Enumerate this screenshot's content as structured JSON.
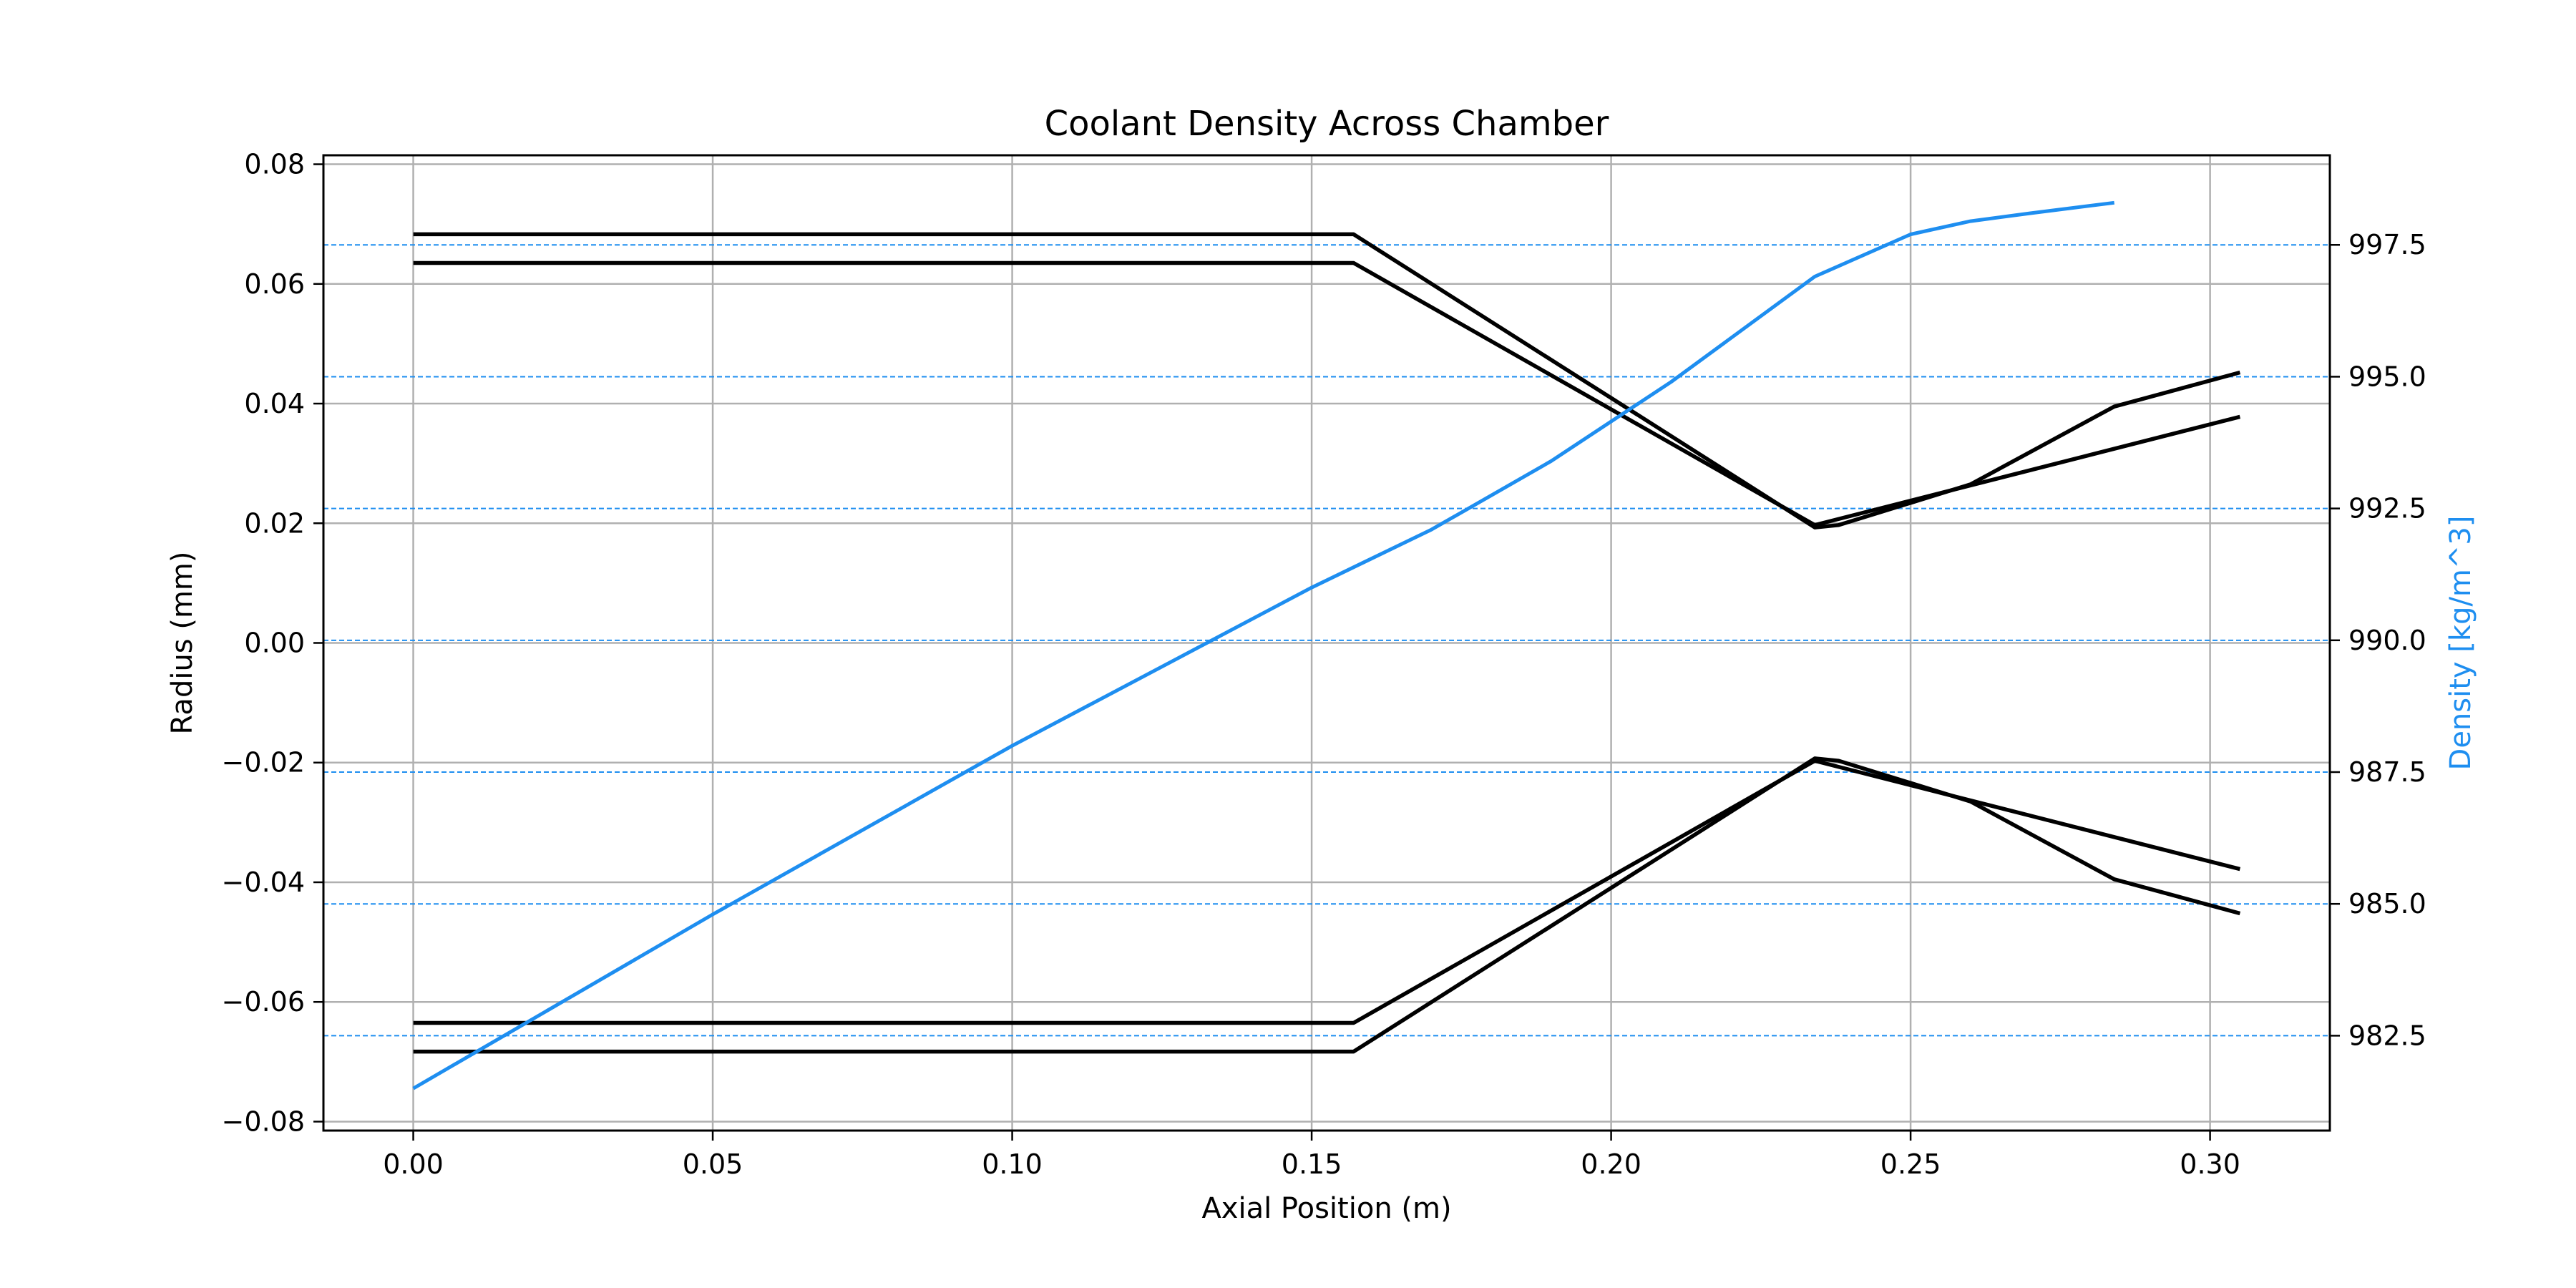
{
  "chart_data": {
    "type": "line",
    "title": "Coolant Density Across Chamber",
    "xlabel": "Axial Position (m)",
    "ylabel": "Radius (mm)",
    "y2label": "Density [kg/m^3]",
    "xlim": [
      -0.015,
      0.32
    ],
    "ylim": [
      -0.0815,
      0.0815
    ],
    "y2lim": [
      980.7,
      999.2
    ],
    "xticks": [
      0.0,
      0.05,
      0.1,
      0.15,
      0.2,
      0.25,
      0.3
    ],
    "xtick_labels": [
      "0.00",
      "0.05",
      "0.10",
      "0.15",
      "0.20",
      "0.25",
      "0.30"
    ],
    "yticks": [
      -0.08,
      -0.06,
      -0.04,
      -0.02,
      0.0,
      0.02,
      0.04,
      0.06,
      0.08
    ],
    "ytick_labels": [
      "−0.08",
      "−0.06",
      "−0.04",
      "−0.02",
      "0.00",
      "0.02",
      "0.04",
      "0.06",
      "0.08"
    ],
    "y2ticks": [
      982.5,
      985.0,
      987.5,
      990.0,
      992.5,
      995.0,
      997.5
    ],
    "y2tick_labels": [
      "982.5",
      "985.0",
      "987.5",
      "990.0",
      "992.5",
      "995.0",
      "997.5"
    ],
    "grid": true,
    "colors": {
      "contour": "#000000",
      "density": "#1e8ef0",
      "grid": "#b0b0b0"
    },
    "series": [
      {
        "axis": "left",
        "color": "#000000",
        "x": [
          0.0,
          0.157,
          0.234,
          0.238,
          0.26,
          0.284,
          0.305
        ],
        "y": [
          0.0683,
          0.0683,
          0.0193,
          0.0197,
          0.0265,
          0.0395,
          0.0452
        ]
      },
      {
        "axis": "left",
        "color": "#000000",
        "x": [
          0.0,
          0.157,
          0.234,
          0.305
        ],
        "y": [
          0.0635,
          0.0635,
          0.0197,
          0.0378
        ]
      },
      {
        "axis": "left",
        "color": "#000000",
        "x": [
          0.0,
          0.157,
          0.234,
          0.238,
          0.26,
          0.284,
          0.305
        ],
        "y": [
          -0.0683,
          -0.0683,
          -0.0193,
          -0.0197,
          -0.0265,
          -0.0395,
          -0.0452
        ]
      },
      {
        "axis": "left",
        "color": "#000000",
        "x": [
          0.0,
          0.157,
          0.234,
          0.305
        ],
        "y": [
          -0.0635,
          -0.0635,
          -0.0197,
          -0.0378
        ]
      },
      {
        "axis": "right",
        "color": "#1e8ef0",
        "x": [
          0.0,
          0.05,
          0.1,
          0.15,
          0.17,
          0.19,
          0.21,
          0.234,
          0.25,
          0.26,
          0.27,
          0.284
        ],
        "y": [
          981.5,
          984.8,
          988.0,
          991.0,
          992.1,
          993.4,
          994.9,
          996.9,
          997.7,
          997.95,
          998.1,
          998.3
        ]
      }
    ]
  }
}
